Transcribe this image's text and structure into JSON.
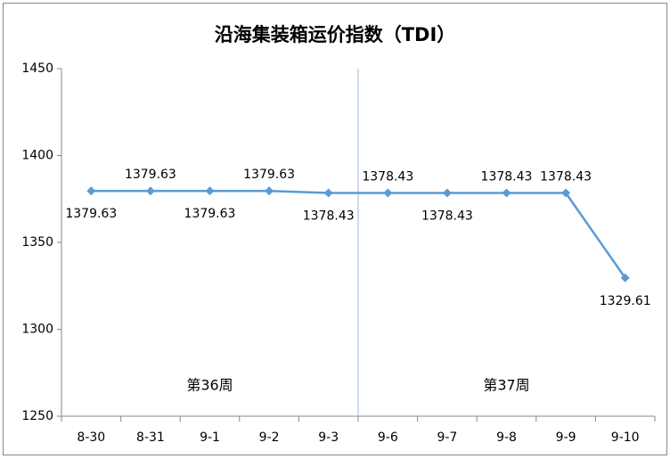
{
  "chart_data": {
    "type": "line",
    "title": "沿海集装箱运价指数（TDI）",
    "categories": [
      "8-30",
      "8-31",
      "9-1",
      "9-2",
      "9-3",
      "9-6",
      "9-7",
      "9-8",
      "9-9",
      "9-10"
    ],
    "values": [
      1379.63,
      1379.63,
      1379.63,
      1379.63,
      1378.43,
      1378.43,
      1378.43,
      1378.43,
      1378.43,
      1329.61
    ],
    "color": "#5b9bd5",
    "ylim": [
      1250,
      1450
    ],
    "yticks": [
      1250,
      1300,
      1350,
      1400,
      1450
    ],
    "grid": false,
    "annotations": [
      "第36周",
      "第37周"
    ]
  }
}
